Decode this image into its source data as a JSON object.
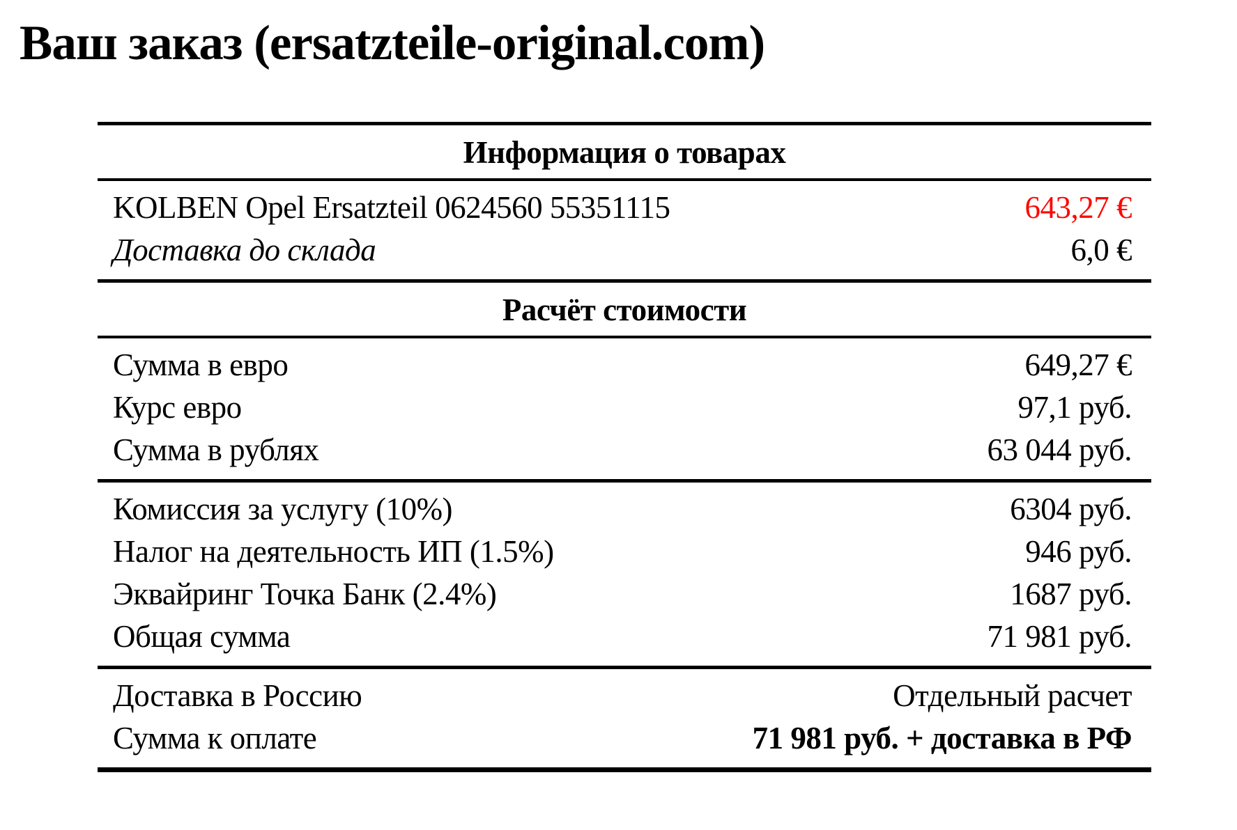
{
  "page": {
    "title": "Ваш заказ (ersatzteile-original.com)"
  },
  "colors": {
    "text": "#000000",
    "background": "#ffffff",
    "highlight_price_red": "#fb0a05"
  },
  "table": {
    "sections": [
      {
        "header": "Информация о товарах",
        "rows": [
          {
            "label": "KOLBEN Opel Ersatzteil 0624560 55351115",
            "value": "643,27 €",
            "value_highlight": "red"
          },
          {
            "label": "Доставка до склада",
            "value": "6,0 €",
            "label_style": "italic"
          }
        ]
      },
      {
        "header": "Расчёт стоимости",
        "rows": [
          {
            "label": "Сумма в евро",
            "value": "649,27 €"
          },
          {
            "label": "Курс евро",
            "value": "97,1 руб."
          },
          {
            "label": "Сумма в рублях",
            "value": "63 044 руб."
          }
        ]
      },
      {
        "rows": [
          {
            "label": "Комиссия за услугу (10%)",
            "value": "6304 руб."
          },
          {
            "label": "Налог на деятельность ИП (1.5%)",
            "value": "946 руб."
          },
          {
            "label": "Эквайринг Точка Банк (2.4%)",
            "value": "1687 руб."
          },
          {
            "label": "Общая сумма",
            "value": "71 981 руб."
          }
        ]
      },
      {
        "rows": [
          {
            "label": "Доставка в Россию",
            "value": "Отдельный расчет"
          },
          {
            "label": "Сумма к оплате",
            "value": "71 981 руб. + доставка в РФ",
            "value_style": "bold"
          }
        ]
      }
    ]
  }
}
